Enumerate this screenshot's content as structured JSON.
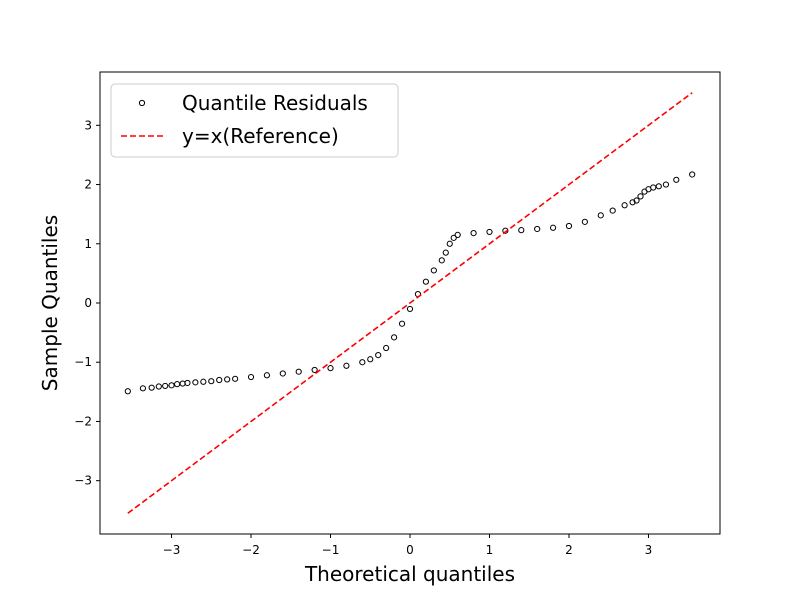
{
  "chart_data": {
    "type": "scatter",
    "title": "",
    "xlabel": "Theoretical quantiles",
    "ylabel": "Sample Quantiles",
    "xlim": [
      -3.9,
      3.9
    ],
    "ylim": [
      -3.9,
      3.9
    ],
    "xticks": [
      -3,
      -2,
      -1,
      0,
      1,
      2,
      3
    ],
    "yticks": [
      -3,
      -2,
      -1,
      0,
      1,
      2,
      3
    ],
    "grid": false,
    "legend_position": "top-left",
    "series": [
      {
        "name": "Quantile Residuals",
        "kind": "scatter",
        "marker": "hollow-circle",
        "color": "#000000",
        "points": [
          [
            -3.55,
            -1.49
          ],
          [
            -3.36,
            -1.44
          ],
          [
            -3.25,
            -1.43
          ],
          [
            -3.16,
            -1.41
          ],
          [
            -3.08,
            -1.4
          ],
          [
            -3.0,
            -1.39
          ],
          [
            -2.93,
            -1.37
          ],
          [
            -2.86,
            -1.36
          ],
          [
            -2.8,
            -1.35
          ],
          [
            -2.7,
            -1.34
          ],
          [
            -2.6,
            -1.33
          ],
          [
            -2.5,
            -1.32
          ],
          [
            -2.4,
            -1.3
          ],
          [
            -2.3,
            -1.29
          ],
          [
            -2.2,
            -1.28
          ],
          [
            -2.0,
            -1.25
          ],
          [
            -1.8,
            -1.22
          ],
          [
            -1.6,
            -1.19
          ],
          [
            -1.4,
            -1.16
          ],
          [
            -1.2,
            -1.13
          ],
          [
            -1.0,
            -1.1
          ],
          [
            -0.8,
            -1.06
          ],
          [
            -0.6,
            -1.0
          ],
          [
            -0.5,
            -0.95
          ],
          [
            -0.4,
            -0.88
          ],
          [
            -0.3,
            -0.76
          ],
          [
            -0.2,
            -0.58
          ],
          [
            -0.1,
            -0.35
          ],
          [
            0.0,
            -0.1
          ],
          [
            0.1,
            0.15
          ],
          [
            0.2,
            0.36
          ],
          [
            0.3,
            0.55
          ],
          [
            0.4,
            0.72
          ],
          [
            0.45,
            0.85
          ],
          [
            0.5,
            1.0
          ],
          [
            0.55,
            1.1
          ],
          [
            0.6,
            1.15
          ],
          [
            0.8,
            1.18
          ],
          [
            1.0,
            1.2
          ],
          [
            1.2,
            1.22
          ],
          [
            1.4,
            1.23
          ],
          [
            1.6,
            1.25
          ],
          [
            1.8,
            1.27
          ],
          [
            2.0,
            1.3
          ],
          [
            2.2,
            1.37
          ],
          [
            2.4,
            1.48
          ],
          [
            2.55,
            1.56
          ],
          [
            2.7,
            1.65
          ],
          [
            2.8,
            1.7
          ],
          [
            2.85,
            1.73
          ],
          [
            2.9,
            1.8
          ],
          [
            2.95,
            1.88
          ],
          [
            3.0,
            1.92
          ],
          [
            3.06,
            1.95
          ],
          [
            3.13,
            1.97
          ],
          [
            3.22,
            2.0
          ],
          [
            3.35,
            2.08
          ],
          [
            3.55,
            2.17
          ]
        ]
      },
      {
        "name": "y=x(Reference)",
        "kind": "line",
        "style": "dashed",
        "color": "#ff0000",
        "x": [
          -3.55,
          3.55
        ],
        "y": [
          -3.55,
          3.55
        ]
      }
    ]
  }
}
